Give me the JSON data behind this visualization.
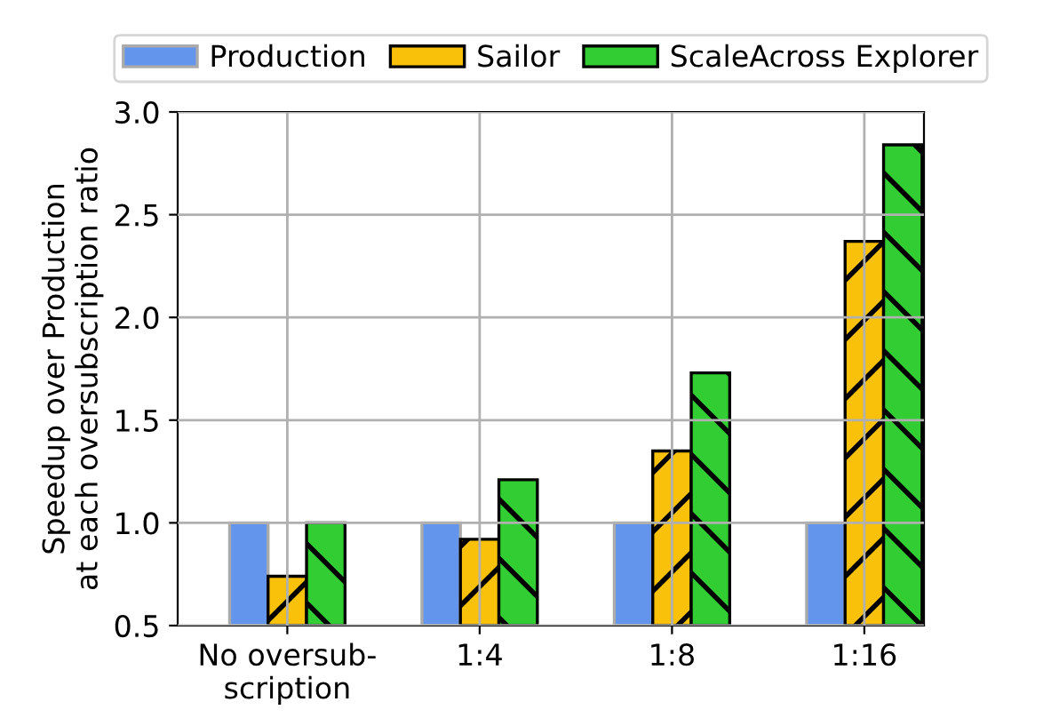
{
  "chart_data": {
    "type": "bar",
    "ylabel": "Speedup over Production\nat each oversubscription ratio",
    "categories": [
      "No oversub-\nscription",
      "1:4",
      "1:8",
      "1:16"
    ],
    "series": [
      {
        "name": "Production",
        "color": "#6495ed",
        "values": [
          1.0,
          1.0,
          1.0,
          1.0
        ]
      },
      {
        "name": "Sailor",
        "color": "#f9c10a",
        "values": [
          0.74,
          0.92,
          1.35,
          2.37
        ]
      },
      {
        "name": "ScaleAcross Explorer",
        "color": "#32cd32",
        "values": [
          1.0,
          1.21,
          1.73,
          2.84
        ]
      }
    ],
    "ylim": [
      0.5,
      3.0
    ],
    "yticks": [
      {
        "value": 0.5,
        "label": "0.5"
      },
      {
        "value": 1.0,
        "label": "1.0"
      },
      {
        "value": 1.5,
        "label": "1.5"
      },
      {
        "value": 2.0,
        "label": "2.0"
      },
      {
        "value": 2.5,
        "label": "2.5"
      },
      {
        "value": 3.0,
        "label": "3.0"
      }
    ],
    "grid": true,
    "legend": "top"
  }
}
